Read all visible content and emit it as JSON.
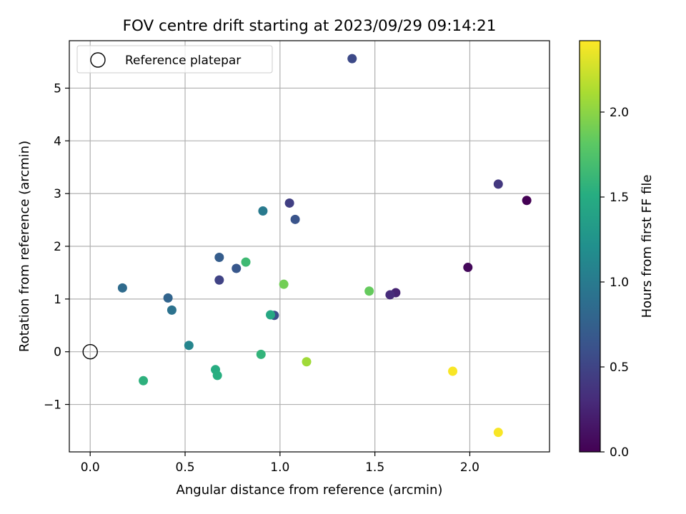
{
  "chart_data": {
    "type": "scatter",
    "title": "FOV centre drift starting at 2023/09/29 09:14:21",
    "xlabel": "Angular distance from reference (arcmin)",
    "ylabel": "Rotation from reference (arcmin)",
    "xlim": [
      -0.11,
      2.42
    ],
    "ylim": [
      -1.9,
      5.9
    ],
    "xticks": [
      0.0,
      0.5,
      1.0,
      1.5,
      2.0
    ],
    "xtick_labels": [
      "0.0",
      "0.5",
      "1.0",
      "1.5",
      "2.0"
    ],
    "yticks": [
      -1,
      0,
      1,
      2,
      3,
      4,
      5
    ],
    "ytick_labels": [
      "−1",
      "0",
      "1",
      "2",
      "3",
      "4",
      "5"
    ],
    "grid": true,
    "legend": {
      "placement": "top-left",
      "entries": [
        "Reference platepar"
      ]
    },
    "reference_point": {
      "x": 0.0,
      "y": 0.0
    },
    "colorbar": {
      "label": "Hours from first FF file",
      "colormap": "viridis",
      "range": [
        0.0,
        2.42
      ],
      "ticks": [
        0.0,
        0.5,
        1.0,
        1.5,
        2.0
      ],
      "tick_labels": [
        "0.0",
        "0.5",
        "1.0",
        "1.5",
        "2.0"
      ]
    },
    "points": [
      {
        "x": 2.3,
        "y": 2.87,
        "hours": 0.0
      },
      {
        "x": 1.99,
        "y": 1.6,
        "hours": 0.05
      },
      {
        "x": 1.61,
        "y": 1.12,
        "hours": 0.24
      },
      {
        "x": 1.58,
        "y": 1.08,
        "hours": 0.3
      },
      {
        "x": 2.15,
        "y": 3.18,
        "hours": 0.4
      },
      {
        "x": 1.05,
        "y": 2.82,
        "hours": 0.46
      },
      {
        "x": 0.68,
        "y": 1.36,
        "hours": 0.49
      },
      {
        "x": 1.38,
        "y": 5.56,
        "hours": 0.55
      },
      {
        "x": 0.97,
        "y": 0.69,
        "hours": 0.58
      },
      {
        "x": 1.08,
        "y": 2.51,
        "hours": 0.63
      },
      {
        "x": 0.77,
        "y": 1.58,
        "hours": 0.66
      },
      {
        "x": 0.68,
        "y": 1.79,
        "hours": 0.72
      },
      {
        "x": 0.41,
        "y": 1.02,
        "hours": 0.78
      },
      {
        "x": 0.17,
        "y": 1.21,
        "hours": 0.85
      },
      {
        "x": 0.43,
        "y": 0.79,
        "hours": 0.92
      },
      {
        "x": 0.91,
        "y": 2.67,
        "hours": 1.0
      },
      {
        "x": 0.52,
        "y": 0.12,
        "hours": 1.1
      },
      {
        "x": 0.95,
        "y": 0.7,
        "hours": 1.45
      },
      {
        "x": 0.66,
        "y": -0.34,
        "hours": 1.5
      },
      {
        "x": 0.67,
        "y": -0.45,
        "hours": 1.52
      },
      {
        "x": 0.28,
        "y": -0.55,
        "hours": 1.55
      },
      {
        "x": 0.9,
        "y": -0.05,
        "hours": 1.58
      },
      {
        "x": 0.82,
        "y": 1.7,
        "hours": 1.65
      },
      {
        "x": 1.47,
        "y": 1.15,
        "hours": 1.85
      },
      {
        "x": 1.02,
        "y": 1.28,
        "hours": 1.9
      },
      {
        "x": 1.14,
        "y": -0.19,
        "hours": 2.08
      },
      {
        "x": 1.91,
        "y": -0.37,
        "hours": 2.4
      },
      {
        "x": 2.15,
        "y": -1.53,
        "hours": 2.4
      }
    ]
  }
}
